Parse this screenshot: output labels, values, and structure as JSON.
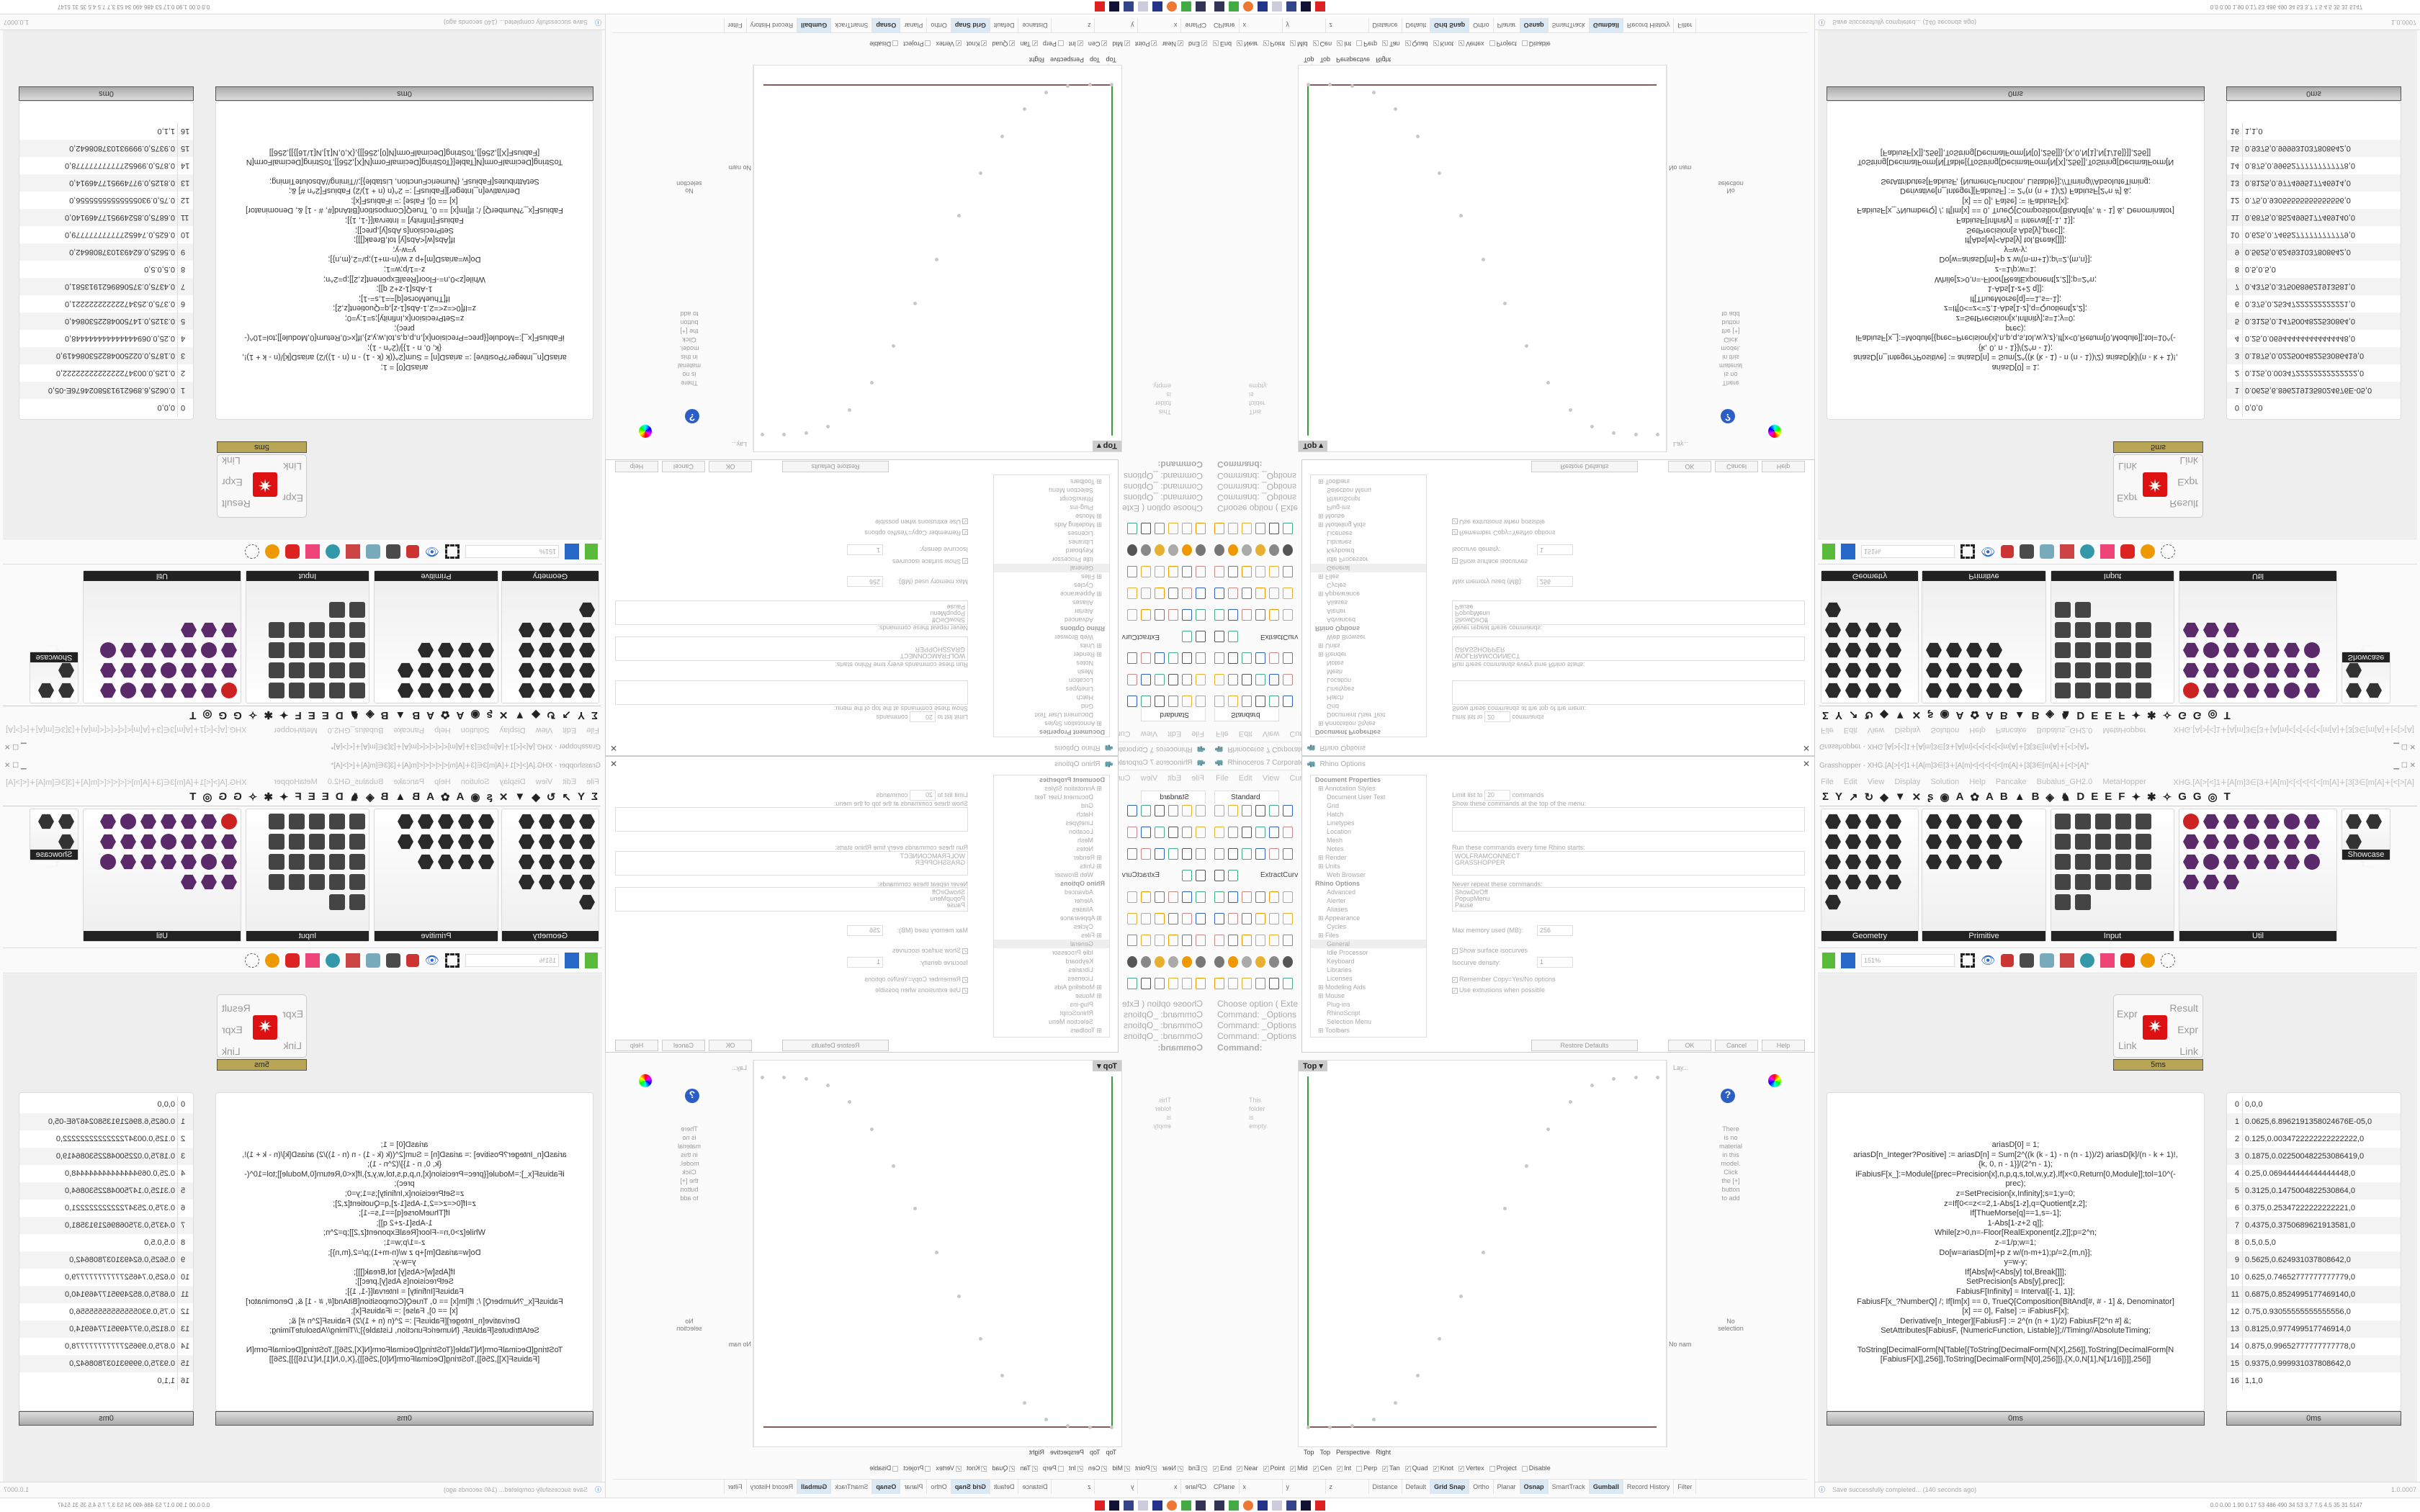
{
  "rhino": {
    "title": "Rhinoceros 7 Corporate -",
    "menu": [
      "File",
      "Edit",
      "View",
      "Curve"
    ],
    "toolbar_tab": "Standard",
    "extract_label": "ExtractCurv",
    "command_history": [
      "Choose option ( Exte",
      "Command: _Options",
      "Command: _Options",
      "Command: _Options"
    ],
    "command_prompt": "Command:",
    "viewport_title": "Top",
    "viewport_tabs": [
      "Top",
      "Top",
      "Perspective",
      "Right"
    ],
    "osnaps": [
      {
        "label": "End",
        "checked": true
      },
      {
        "label": "Near",
        "checked": true
      },
      {
        "label": "Point",
        "checked": true
      },
      {
        "label": "Mid",
        "checked": true
      },
      {
        "label": "Cen",
        "checked": true
      },
      {
        "label": "Int",
        "checked": true
      },
      {
        "label": "Perp",
        "checked": false
      },
      {
        "label": "Tan",
        "checked": true
      },
      {
        "label": "Quad",
        "checked": true
      },
      {
        "label": "Knot",
        "checked": true
      },
      {
        "label": "Vertex",
        "checked": true
      },
      {
        "label": "Project",
        "checked": false
      },
      {
        "label": "Disable",
        "checked": false
      }
    ],
    "statusbar": [
      {
        "label": "CPlane",
        "on": false
      },
      {
        "label": "x",
        "on": false
      },
      {
        "label": "y",
        "on": false
      },
      {
        "label": "z",
        "on": false
      },
      {
        "label": "Distance",
        "on": false
      },
      {
        "label": "Default",
        "on": false
      },
      {
        "label": "Grid Snap",
        "on": true
      },
      {
        "label": "Ortho",
        "on": false
      },
      {
        "label": "Planar",
        "on": false
      },
      {
        "label": "Osnap",
        "on": true
      },
      {
        "label": "SmartTrack",
        "on": false
      },
      {
        "label": "Gumball",
        "on": true
      },
      {
        "label": "Record History",
        "on": false
      },
      {
        "label": "Filter",
        "on": false
      }
    ],
    "side_panels": {
      "empty_folder": "This folder is empty.",
      "no_material": "There is no material in this model. Click the [+] button to add",
      "no_selection": "No selection",
      "no_name": "No nam",
      "layers": "Lay..."
    }
  },
  "options_dialog": {
    "title": "Rhino Options",
    "tree": [
      {
        "label": "Document Properties",
        "header": true
      },
      {
        "label": "Annotation Styles",
        "plus": true
      },
      {
        "label": "Document User Text"
      },
      {
        "label": "Grid"
      },
      {
        "label": "Hatch"
      },
      {
        "label": "Linetypes"
      },
      {
        "label": "Location"
      },
      {
        "label": "Mesh"
      },
      {
        "label": "Notes"
      },
      {
        "label": "Render",
        "plus": true
      },
      {
        "label": "Units",
        "plus": true
      },
      {
        "label": "Web Browser"
      },
      {
        "label": "Rhino Options",
        "header": true
      },
      {
        "label": "Advanced"
      },
      {
        "label": "Alerter"
      },
      {
        "label": "Aliases"
      },
      {
        "label": "Appearance",
        "plus": true
      },
      {
        "label": "Cycles"
      },
      {
        "label": "Files",
        "plus": true
      },
      {
        "label": "General",
        "selected": true
      },
      {
        "label": "Idle Processor"
      },
      {
        "label": "Keyboard"
      },
      {
        "label": "Libraries"
      },
      {
        "label": "Licenses"
      },
      {
        "label": "Modeling Aids",
        "plus": true
      },
      {
        "label": "Mouse",
        "plus": true
      },
      {
        "label": "Plug-ins"
      },
      {
        "label": "RhinoScript"
      },
      {
        "label": "Selection Menu"
      },
      {
        "label": "Toolbars",
        "plus": true
      }
    ],
    "limit_label": "Limit list to",
    "limit_value": "20",
    "limit_unit": "commands",
    "top_menu_label": "Show these commands at the top of the menu:",
    "startup_label": "Run these commands every time Rhino starts:",
    "startup_commands": [
      "WOLFRAMCONNECT",
      "GRASSHOPPER"
    ],
    "never_repeat_label": "Never repeat these commands:",
    "never_repeat": [
      "ShowDirOff",
      "PopupMenu",
      "Pause"
    ],
    "max_memory_label": "Max memory used (MB):",
    "max_memory_value": "256",
    "show_isocurves": "Show surface isocurves",
    "isocurve_density_label": "Isocurve density:",
    "isocurve_density_value": "1",
    "remember_copy": "Remember Copy=Yes/No options",
    "use_extrusions": "Use extrusions when possible",
    "buttons": {
      "restore": "Restore Defaults",
      "ok": "OK",
      "cancel": "Cancel",
      "help": "Help"
    }
  },
  "grasshopper": {
    "title": "Grasshopper - XHG.[A[>[<]1∔[A[m]3∈[3∔[A[m]<[<[<[<[<[m[A]∔[3[3∈[m[A]∔[<[>[A]*",
    "menu": [
      "File",
      "Edit",
      "View",
      "Display",
      "Solution",
      "Help",
      "Pancake",
      "Bubalus_GH2.0",
      "MetaHopper"
    ],
    "doc_name": "XHG.[A[>[<]1∔[A[m]3∈[3∔[A[m]<[<[<[<[<[m[A]∔[3[3∈[m[A]∔[<[>[A]",
    "tabs": [
      "Σ",
      "Y",
      "↗",
      "↻",
      "◆",
      "▼",
      "✕",
      "ʂ",
      "◉",
      "A",
      "✿",
      "A",
      "B",
      "▲",
      "B",
      "◈",
      "♞",
      "D",
      "E",
      "E",
      "F",
      "✦",
      "✱",
      "✧",
      "G",
      "G",
      "◎",
      "T"
    ],
    "panels": [
      {
        "label": "Geometry",
        "count": 17
      },
      {
        "label": "Primitive",
        "count": 14
      },
      {
        "label": "Input",
        "count": 22
      },
      {
        "label": "Util",
        "count": 24
      },
      {
        "label": "Showcase T...",
        "count": 3
      }
    ],
    "zoom_value": "151%",
    "component": {
      "inputs": [
        "Expr",
        "Link"
      ],
      "outputs": [
        "Result",
        "Expr",
        "Link"
      ],
      "timing": "5ms"
    },
    "code_panel": {
      "lines": [
        "ariasD[0] = 1;",
        "ariasD[n_Integer?Positive] := ariasD[n] = Sum[2^((k (k - 1) - n (n - 1))/2) ariasD[k]/(n - k + 1)!,",
        "{k, 0, n - 1}]/(2^n - 1);",
        "iFabiusF[x_]:=Module[{prec=Precision[x],n,p,q,s,tol,w,y,z},If[x<0,Return[0,Module]];tol=10^(-",
        "prec);",
        "z=SetPrecision[x,Infinity];s=1;y=0;",
        "z=If[0<=z<=2,1-Abs[1-z],q=Quotient[z,2];",
        "If[ThueMorse[q]==1,s=-1];",
        "1-Abs[1-z+2 q]];",
        "While[z>0,n=-Floor[RealExponent[z,2]];p=2^n;",
        "z-=1/p;w=1;",
        "Do[w=ariasD[m]+p z w/(n-m+1);p/=2,{m,n}];",
        "y=w-y;",
        "If[Abs[w]<Abs[y] tol,Break[]]];",
        "SetPrecision[s Abs[y],prec]];",
        "FabiusF[Infinity] = Interval[{-1, 1}];",
        "FabiusF[x_?NumberQ] /; If[Im[x] == 0, TrueQ[Composition[BitAnd[#, # - 1] &, Denominator]",
        "[x] == 0], False] := iFabiusF[x];",
        "Derivative[n_Integer][FabiusF] := 2^(n (n + 1)/2) FabiusF[2^n #] &;",
        "SetAttributes[FabiusF, {NumericFunction, Listable}];//Timing//AbsoluteTiming;",
        "",
        "ToString[DecimalForm[N[Table[{ToString[DecimalForm[N[X],256]],ToString[DecimalForm[N",
        "[FabiusF[X]],256]],ToString[DecimalForm[N[0],256]]},{X,0,N[1],N[1/16]}]],256]]"
      ],
      "timing": "0ms"
    },
    "result_panel": {
      "rows": [
        "0,0,0",
        "0.0625,6.8962191358024676E-05,0",
        "0.125,0.0034722222222222222,0",
        "0.1875,0.022500482253086419,0",
        "0.25,0.069444444444444448,0",
        "0.3125,0.1475004822530864,0",
        "0.375,0.25347222222222221,0",
        "0.4375,0.3750689621913581,0",
        "0.5,0.5,0",
        "0.5625,0.624931037808642,0",
        "0.625,0.74652777777777779,0",
        "0.6875,0.8524995177469140,0",
        "0.75,0.93055555555555556,0",
        "0.8125,0.977499517746914,0",
        "0.875,0.99652777777777778,0",
        "0.9375,0.999931037808642,0",
        "1,1,0"
      ],
      "timing": "0ms"
    },
    "status_message": "Save successfully completed... (140 seconds ago)",
    "version": "1.0.0007"
  },
  "taskbar": {
    "tray_readout": "0.0 0.00 1.90 0.17 53 486 490 34 53 3.7 7.5 4.5 35 31 5147"
  }
}
